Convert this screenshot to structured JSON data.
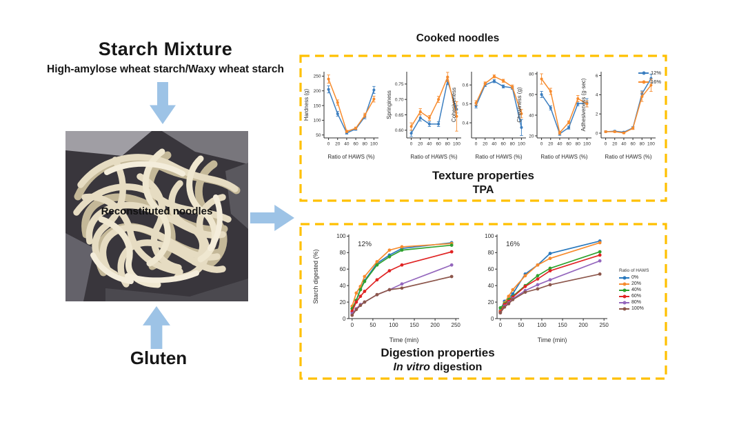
{
  "colors": {
    "box_border": "#FFC000",
    "arrow": "#9DC3E6",
    "series_12": "#3B7EC0",
    "series_16": "#F78B2D",
    "haws_0": "#2878BD",
    "haws_20": "#F78B2D",
    "haws_40": "#2EA12E",
    "haws_60": "#E02424",
    "haws_80": "#9467BD",
    "haws_100": "#8C564B"
  },
  "left_flow": {
    "title": "Starch Mixture",
    "subtitle": "High-amylose wheat starch/Waxy wheat starch",
    "photo_label": "Reconstituted noodles",
    "gluten_label": "Gluten"
  },
  "top_panel": {
    "header": "Cooked noodles",
    "caption_line1": "Texture properties",
    "caption_line2": "TPA",
    "legend": {
      "entries": [
        {
          "label": "12%",
          "color": "#3B7EC0"
        },
        {
          "label": "16%",
          "color": "#F78B2D"
        }
      ]
    }
  },
  "bottom_panel": {
    "caption_line1": "Digestion properties",
    "caption_italic": "In vitro",
    "caption_rest": " digestion",
    "legend": {
      "title": "Ratio of HAWS",
      "entries": [
        {
          "label": "0%",
          "color": "#2878BD"
        },
        {
          "label": "20%",
          "color": "#F78B2D"
        },
        {
          "label": "40%",
          "color": "#2EA12E"
        },
        {
          "label": "60%",
          "color": "#E02424"
        },
        {
          "label": "80%",
          "color": "#9467BD"
        },
        {
          "label": "100%",
          "color": "#8C564B"
        }
      ]
    }
  },
  "chart_data": [
    {
      "type": "line",
      "ylabel": "Hardness (g)",
      "xlabel": "Ratio of HAWS (%)",
      "x": [
        0,
        20,
        40,
        60,
        80,
        100
      ],
      "xlim": [
        -10,
        110
      ],
      "xticks": [
        0,
        20,
        40,
        60,
        80,
        100
      ],
      "ylim": [
        40,
        265
      ],
      "yticks": [
        50,
        100,
        150,
        200,
        250
      ],
      "ytick_labels": [
        "50",
        "100",
        "150",
        "200",
        "250"
      ],
      "series": [
        {
          "name": "12%",
          "color": "#3B7EC0",
          "values": [
            205,
            122,
            57,
            70,
            112,
            203
          ],
          "errors": [
            12,
            8,
            4,
            4,
            7,
            12
          ]
        },
        {
          "name": "16%",
          "color": "#F78B2D",
          "values": [
            240,
            160,
            62,
            73,
            117,
            172
          ],
          "errors": [
            14,
            9,
            4,
            4,
            7,
            10
          ]
        }
      ]
    },
    {
      "type": "line",
      "ylabel": "Springiness",
      "xlabel": "Ratio of HAWS (%)",
      "x": [
        0,
        20,
        40,
        60,
        80,
        100
      ],
      "xlim": [
        -10,
        110
      ],
      "xticks": [
        0,
        20,
        40,
        60,
        80,
        100
      ],
      "ylim": [
        0.575,
        0.79
      ],
      "yticks": [
        0.6,
        0.65,
        0.7,
        0.75
      ],
      "ytick_labels": [
        "0.60",
        "0.65",
        "0.70",
        "0.75"
      ],
      "series": [
        {
          "name": "12%",
          "color": "#3B7EC0",
          "values": [
            0.59,
            0.64,
            0.62,
            0.62,
            0.76,
            0.668
          ],
          "errors": [
            0.01,
            0.01,
            0.008,
            0.008,
            0.012,
            0.012
          ]
        },
        {
          "name": "16%",
          "color": "#F78B2D",
          "values": [
            0.612,
            0.66,
            0.64,
            0.7,
            0.773,
            0.645
          ],
          "errors": [
            0.012,
            0.01,
            0.008,
            0.01,
            0.015,
            0.048
          ]
        }
      ]
    },
    {
      "type": "line",
      "ylabel": "Cohesiveness",
      "xlabel": "Ratio of HAWS (%)",
      "x": [
        0,
        20,
        40,
        60,
        80,
        100
      ],
      "xlim": [
        -10,
        110
      ],
      "xticks": [
        0,
        20,
        40,
        60,
        80,
        100
      ],
      "ylim": [
        0.32,
        0.67
      ],
      "yticks": [
        0.4,
        0.5,
        0.6
      ],
      "ytick_labels": [
        "0.4",
        "0.5",
        "0.6"
      ],
      "series": [
        {
          "name": "12%",
          "color": "#3B7EC0",
          "values": [
            0.49,
            0.6,
            0.62,
            0.592,
            0.585,
            0.375
          ],
          "errors": [
            0.012,
            0.008,
            0.008,
            0.008,
            0.008,
            0.042
          ]
        },
        {
          "name": "16%",
          "color": "#F78B2D",
          "values": [
            0.505,
            0.608,
            0.645,
            0.622,
            0.59,
            0.448
          ],
          "errors": [
            0.012,
            0.008,
            0.008,
            0.008,
            0.01,
            0.022
          ]
        }
      ]
    },
    {
      "type": "line",
      "ylabel": "Chewiness (g)",
      "xlabel": "Ratio of HAWS (%)",
      "x": [
        0,
        20,
        40,
        60,
        80,
        100
      ],
      "xlim": [
        -10,
        110
      ],
      "xticks": [
        0,
        20,
        40,
        60,
        80,
        100
      ],
      "ylim": [
        18,
        82
      ],
      "yticks": [
        20,
        40,
        60,
        80
      ],
      "ytick_labels": [
        "20",
        "40",
        "60",
        "80"
      ],
      "series": [
        {
          "name": "12%",
          "color": "#3B7EC0",
          "values": [
            60,
            47,
            22,
            28,
            51,
            52
          ],
          "errors": [
            3,
            2,
            1.5,
            1.5,
            2,
            4
          ]
        },
        {
          "name": "16%",
          "color": "#F78B2D",
          "values": [
            75,
            63,
            23,
            33,
            56,
            51
          ],
          "errors": [
            5,
            3,
            1.5,
            1.5,
            3,
            3
          ]
        }
      ]
    },
    {
      "type": "line",
      "ylabel": "Adhesiveness (g·sec)",
      "xlabel": "Ratio of HAWS (%)",
      "x": [
        0,
        20,
        40,
        60,
        80,
        100
      ],
      "xlim": [
        -10,
        110
      ],
      "xticks": [
        0,
        20,
        40,
        60,
        80,
        100
      ],
      "ylim": [
        -0.5,
        6.4
      ],
      "yticks": [
        0,
        2,
        4,
        6
      ],
      "ytick_labels": [
        "0",
        "2",
        "4",
        "6"
      ],
      "series": [
        {
          "name": "12%",
          "color": "#3B7EC0",
          "values": [
            0.15,
            0.2,
            0.1,
            0.55,
            4.1,
            5.7
          ],
          "errors": [
            0.08,
            0.08,
            0.08,
            0.12,
            0.3,
            0.45
          ]
        },
        {
          "name": "16%",
          "color": "#F78B2D",
          "values": [
            0.15,
            0.15,
            0.02,
            0.5,
            3.8,
            5.0
          ],
          "errors": [
            0.08,
            0.08,
            0.08,
            0.12,
            0.5,
            0.65
          ]
        }
      ]
    },
    {
      "type": "line",
      "annotation": "12%",
      "ylabel": "Starch digested (%)",
      "xlabel": "Time (min)",
      "x": [
        0,
        10,
        20,
        30,
        60,
        90,
        120,
        240
      ],
      "xlim": [
        -8,
        258
      ],
      "xticks": [
        0,
        50,
        100,
        150,
        200,
        250
      ],
      "ylim": [
        0,
        102
      ],
      "yticks": [
        0,
        20,
        40,
        60,
        80,
        100
      ],
      "ytick_labels": [
        "0",
        "20",
        "40",
        "60",
        "80",
        "100"
      ],
      "series": [
        {
          "name": "0%",
          "color": "#2878BD",
          "values": [
            8,
            22,
            36,
            46,
            67,
            77,
            85,
            92
          ]
        },
        {
          "name": "20%",
          "color": "#F78B2D",
          "values": [
            15,
            31,
            39,
            51,
            69,
            83,
            87,
            91
          ]
        },
        {
          "name": "40%",
          "color": "#2EA12E",
          "values": [
            12,
            22,
            35,
            45,
            65,
            75,
            83,
            89
          ]
        },
        {
          "name": "60%",
          "color": "#E02424",
          "values": [
            9,
            20,
            27,
            33,
            47,
            58,
            65,
            81
          ]
        },
        {
          "name": "80%",
          "color": "#9467BD",
          "values": [
            6,
            12,
            17,
            20,
            29,
            35,
            42,
            65
          ]
        },
        {
          "name": "100%",
          "color": "#8C564B",
          "values": [
            4,
            11,
            16,
            20,
            29,
            35,
            37,
            51
          ]
        }
      ]
    },
    {
      "type": "line",
      "annotation": "16%",
      "ylabel": "",
      "xlabel": "Time (min)",
      "x": [
        0,
        10,
        20,
        30,
        60,
        90,
        120,
        240
      ],
      "xlim": [
        -8,
        258
      ],
      "xticks": [
        0,
        50,
        100,
        150,
        200,
        250
      ],
      "ylim": [
        0,
        102
      ],
      "yticks": [
        0,
        20,
        40,
        60,
        80,
        100
      ],
      "ytick_labels": [
        "0",
        "20",
        "40",
        "60",
        "80",
        "100"
      ],
      "series": [
        {
          "name": "0%",
          "color": "#2878BD",
          "values": [
            10,
            21,
            25,
            30,
            54,
            65,
            79,
            94
          ]
        },
        {
          "name": "20%",
          "color": "#F78B2D",
          "values": [
            9,
            19,
            27,
            35,
            52,
            65,
            73,
            92
          ]
        },
        {
          "name": "40%",
          "color": "#2EA12E",
          "values": [
            13,
            18,
            23,
            27,
            40,
            52,
            61,
            81
          ]
        },
        {
          "name": "60%",
          "color": "#E02424",
          "values": [
            8,
            17,
            21,
            26,
            39,
            48,
            58,
            77
          ]
        },
        {
          "name": "80%",
          "color": "#9467BD",
          "values": [
            7,
            15,
            19,
            24,
            34,
            41,
            47,
            70
          ]
        },
        {
          "name": "100%",
          "color": "#8C564B",
          "values": [
            7,
            14,
            18,
            23,
            32,
            36,
            41,
            54
          ]
        }
      ]
    }
  ]
}
